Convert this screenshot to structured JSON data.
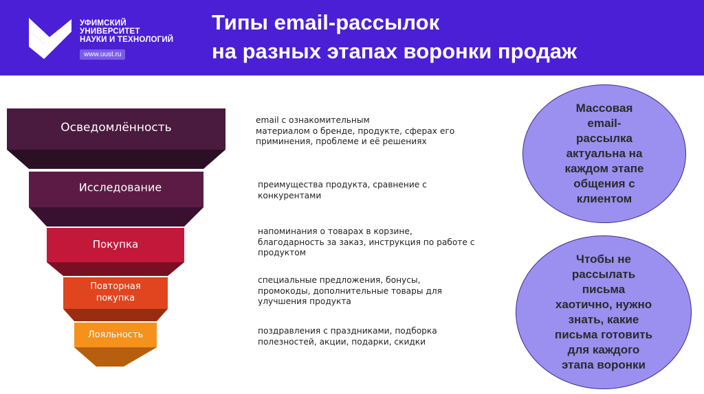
{
  "header": {
    "university_lines": [
      "УФИМСКИЙ",
      "УНИВЕРСИТЕТ",
      "НАУКИ И ТЕХНОЛОГИЙ"
    ],
    "website": "www.uust.ru",
    "title_lines": [
      "Типы email-рассылок",
      "на разных этапах воронки продаж"
    ],
    "background_color": "#4b1fd6"
  },
  "funnel": {
    "stages": [
      {
        "label_lines": [
          "Осведомлённость"
        ],
        "color": "#4a1a3f"
      },
      {
        "label_lines": [
          "Исследование"
        ],
        "color": "#5c1b45"
      },
      {
        "label_lines": [
          "Покупка"
        ],
        "color": "#c4183a"
      },
      {
        "label_lines": [
          "Повторная",
          "покупка"
        ],
        "color": "#e0451f"
      },
      {
        "label_lines": [
          "Лояльность"
        ],
        "color": "#f5921b"
      }
    ]
  },
  "descriptions": [
    {
      "lines": [
        "email с ознакомительным",
        "материалом о бренде, продукте, сферах его",
        "приминения, проблеме и её решениях"
      ]
    },
    {
      "lines": [
        "преимущества продукта, сравнение с",
        "конкурентами"
      ]
    },
    {
      "lines": [
        "напоминания о товарах в корзине,",
        "благодарность за заказ, инструкция по работе с",
        "продуктом"
      ]
    },
    {
      "lines": [
        "специальные предложения, бонусы,",
        "промокоды, дополнительные товары для",
        "улучшения продукта"
      ]
    },
    {
      "lines": [
        "поздравления с праздниками, подборка",
        "полезностей, акции, подарки, скидки"
      ]
    }
  ],
  "notes": [
    {
      "lines": [
        "Массовая",
        "email-",
        "рассылка",
        "актуальна на",
        "каждом этапе",
        "общения с",
        "клиентом"
      ]
    },
    {
      "lines": [
        "Чтобы не",
        "рассылать",
        "письма",
        "хаотично, нужно",
        "знать, какие",
        "письма готовить",
        "для каждого",
        "этапа воронки"
      ]
    }
  ],
  "colors": {
    "bubble_fill": "#9b8ff0",
    "bubble_border": "#3a2f8a"
  }
}
